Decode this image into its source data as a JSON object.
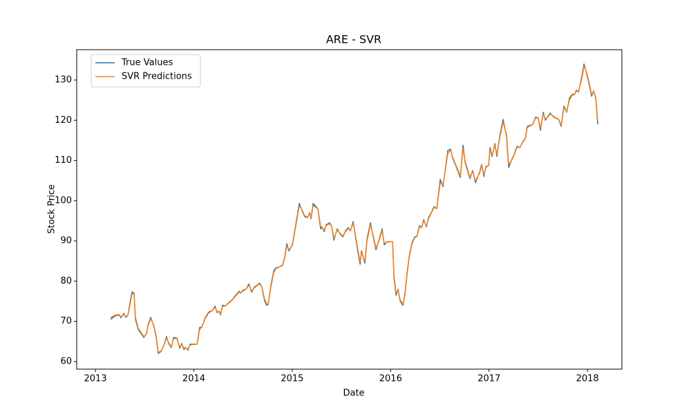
{
  "chart_data": {
    "type": "line",
    "title": "ARE - SVR",
    "x_label": "Date",
    "y_label": "Stock Price",
    "x": [
      2013.154,
      2013.197,
      2013.239,
      2013.26,
      2013.288,
      2013.309,
      2013.33,
      2013.351,
      2013.372,
      2013.393,
      2013.407,
      2013.435,
      2013.492,
      2013.52,
      2013.534,
      2013.562,
      2013.597,
      2013.618,
      2013.639,
      2013.667,
      2013.695,
      2013.723,
      2013.744,
      2013.772,
      2013.794,
      2013.829,
      2013.857,
      2013.878,
      2013.899,
      2013.92,
      2013.941,
      2013.962,
      2014.033,
      2014.06,
      2014.081,
      2014.117,
      2014.152,
      2014.194,
      2014.215,
      2014.236,
      2014.257,
      2014.271,
      2014.292,
      2014.32,
      2014.348,
      2014.397,
      2014.425,
      2014.461,
      2014.475,
      2014.503,
      2014.531,
      2014.559,
      2014.587,
      2014.615,
      2014.643,
      2014.671,
      2014.692,
      2014.72,
      2014.742,
      2014.756,
      2014.784,
      2014.812,
      2014.833,
      2014.868,
      2014.903,
      2014.924,
      2014.945,
      2014.966,
      2015.001,
      2015.036,
      2015.072,
      2015.1,
      2015.128,
      2015.156,
      2015.177,
      2015.191,
      2015.212,
      2015.261,
      2015.289,
      2015.303,
      2015.324,
      2015.345,
      2015.38,
      2015.402,
      2015.423,
      2015.458,
      2015.479,
      2015.514,
      2015.542,
      2015.57,
      2015.591,
      2015.619,
      2015.64,
      2015.669,
      2015.69,
      2015.704,
      2015.739,
      2015.76,
      2015.795,
      2015.823,
      2015.851,
      2015.879,
      2015.914,
      2015.935,
      2015.963,
      2016.02,
      2016.034,
      2016.055,
      2016.076,
      2016.097,
      2016.125,
      2016.146,
      2016.167,
      2016.188,
      2016.216,
      2016.244,
      2016.265,
      2016.294,
      2016.315,
      2016.336,
      2016.364,
      2016.385,
      2016.413,
      2016.441,
      2016.469,
      2016.504,
      2016.532,
      2016.581,
      2016.61,
      2016.631,
      2016.666,
      2016.708,
      2016.736,
      2016.757,
      2016.806,
      2016.834,
      2016.862,
      2016.904,
      2016.925,
      2016.947,
      2016.968,
      2016.996,
      2017.01,
      2017.031,
      2017.059,
      2017.08,
      2017.108,
      2017.143,
      2017.178,
      2017.199,
      2017.227,
      2017.256,
      2017.284,
      2017.312,
      2017.34,
      2017.368,
      2017.389,
      2017.424,
      2017.445,
      2017.473,
      2017.501,
      2017.522,
      2017.551,
      2017.572,
      2017.6,
      2017.621,
      2017.649,
      2017.677,
      2017.705,
      2017.733,
      2017.761,
      2017.789,
      2017.817,
      2017.846,
      2017.867,
      2017.888,
      2017.909,
      2017.944,
      2017.965,
      2017.993,
      2018.021,
      2018.042,
      2018.063,
      2018.084,
      2018.105
    ],
    "series": [
      {
        "name": "True Values",
        "color": "#1f77b4",
        "values": [
          70.5,
          71.3,
          71.6,
          70.9,
          72.0,
          71.0,
          71.5,
          74.5,
          77.3,
          77.0,
          70.5,
          68.0,
          66.0,
          67.0,
          69.0,
          71.0,
          68.5,
          66.0,
          62.0,
          62.5,
          64.0,
          66.2,
          64.5,
          63.5,
          66.0,
          65.8,
          63.3,
          64.5,
          63.0,
          63.5,
          62.8,
          64.3,
          64.3,
          68.5,
          68.5,
          71.0,
          72.3,
          72.8,
          73.8,
          72.2,
          72.5,
          71.6,
          74.0,
          73.8,
          74.5,
          75.5,
          76.5,
          77.5,
          77.0,
          77.8,
          78.0,
          79.3,
          77.3,
          78.5,
          79.0,
          79.5,
          78.5,
          75.0,
          74.0,
          74.2,
          79.0,
          82.5,
          83.3,
          83.5,
          84.0,
          86.0,
          89.3,
          87.5,
          89.0,
          94.0,
          99.3,
          97.5,
          96.0,
          95.8,
          97.0,
          95.5,
          99.3,
          98.0,
          93.0,
          93.5,
          92.3,
          94.0,
          94.5,
          93.5,
          90.2,
          93.0,
          92.0,
          91.0,
          92.5,
          93.3,
          92.5,
          94.8,
          91.5,
          87.0,
          84.2,
          87.5,
          84.5,
          90.5,
          94.5,
          91.0,
          87.8,
          90.0,
          93.0,
          89.0,
          89.8,
          89.8,
          81.0,
          76.5,
          78.0,
          75.0,
          74.0,
          77.0,
          82.0,
          86.0,
          89.5,
          91.0,
          91.0,
          93.8,
          93.3,
          95.3,
          93.5,
          95.8,
          97.0,
          98.5,
          98.0,
          105.3,
          103.5,
          112.5,
          112.8,
          110.5,
          108.5,
          105.8,
          113.8,
          109.5,
          105.5,
          107.5,
          104.5,
          107.0,
          109.0,
          106.0,
          108.5,
          108.7,
          113.2,
          111.0,
          114.2,
          111.0,
          116.0,
          120.2,
          116.0,
          108.3,
          110.0,
          111.5,
          113.5,
          113.2,
          114.5,
          115.5,
          118.5,
          118.8,
          119.0,
          120.8,
          120.5,
          117.5,
          122.0,
          120.0,
          121.0,
          121.8,
          121.0,
          120.5,
          120.3,
          118.5,
          123.5,
          122.0,
          125.5,
          126.5,
          126.3,
          127.5,
          127.0,
          131.0,
          134.0,
          131.5,
          128.5,
          126.0,
          127.3,
          125.5,
          119.0
        ]
      },
      {
        "name": "SVR Predictions",
        "color": "#ff7f0e",
        "values": [
          70.9,
          71.5,
          71.7,
          71.1,
          71.8,
          71.2,
          71.5,
          74.0,
          76.8,
          76.8,
          71.0,
          68.3,
          66.2,
          66.9,
          68.8,
          70.7,
          68.7,
          66.3,
          62.3,
          62.6,
          63.9,
          65.9,
          64.7,
          63.7,
          65.7,
          65.7,
          63.6,
          64.3,
          63.3,
          63.5,
          63.0,
          64.1,
          64.4,
          68.0,
          68.6,
          70.8,
          72.1,
          72.8,
          73.5,
          72.4,
          72.5,
          71.8,
          73.7,
          73.8,
          74.4,
          75.4,
          76.3,
          77.3,
          77.1,
          77.6,
          78.0,
          79.0,
          77.6,
          78.3,
          78.9,
          79.3,
          78.6,
          75.4,
          74.3,
          74.3,
          78.6,
          82.1,
          83.1,
          83.5,
          83.9,
          85.8,
          88.8,
          87.8,
          88.8,
          93.6,
          98.8,
          97.7,
          96.2,
          95.9,
          96.8,
          95.8,
          98.8,
          98.0,
          93.5,
          93.5,
          92.6,
          93.8,
          94.3,
          93.6,
          90.6,
          92.7,
          92.1,
          91.2,
          92.3,
          93.1,
          92.6,
          94.4,
          91.8,
          87.5,
          84.8,
          87.1,
          85.0,
          90.0,
          94.0,
          91.3,
          88.2,
          89.8,
          92.6,
          89.4,
          89.7,
          89.8,
          81.6,
          77.0,
          77.8,
          75.3,
          74.3,
          76.7,
          81.6,
          85.7,
          89.2,
          90.8,
          91.0,
          93.5,
          93.4,
          95.0,
          93.7,
          95.5,
          96.9,
          98.3,
          98.1,
          104.6,
          103.8,
          111.8,
          112.5,
          110.7,
          108.7,
          106.2,
          113.0,
          109.8,
          105.8,
          107.3,
          104.9,
          106.8,
          108.7,
          106.4,
          108.3,
          108.7,
          112.6,
          111.3,
          113.8,
          111.4,
          115.6,
          119.6,
          116.4,
          109.0,
          109.9,
          111.4,
          113.3,
          113.3,
          114.4,
          115.4,
          118.2,
          118.7,
          119.0,
          120.6,
          120.5,
          118.0,
          121.6,
          120.3,
          120.9,
          121.6,
          121.1,
          120.6,
          120.3,
          118.8,
          123.1,
          122.2,
          125.1,
          126.3,
          126.3,
          127.3,
          127.1,
          130.5,
          133.5,
          131.8,
          128.9,
          126.4,
          127.1,
          125.7,
          119.8
        ]
      }
    ],
    "xlim": [
      2012.81,
      2018.35
    ],
    "xticks": [
      2013,
      2014,
      2015,
      2016,
      2017,
      2018
    ],
    "ylim": [
      58.11,
      137.55
    ],
    "yticks": [
      60,
      70,
      80,
      90,
      100,
      110,
      120,
      130
    ],
    "grid": false,
    "legend": "upper left"
  }
}
